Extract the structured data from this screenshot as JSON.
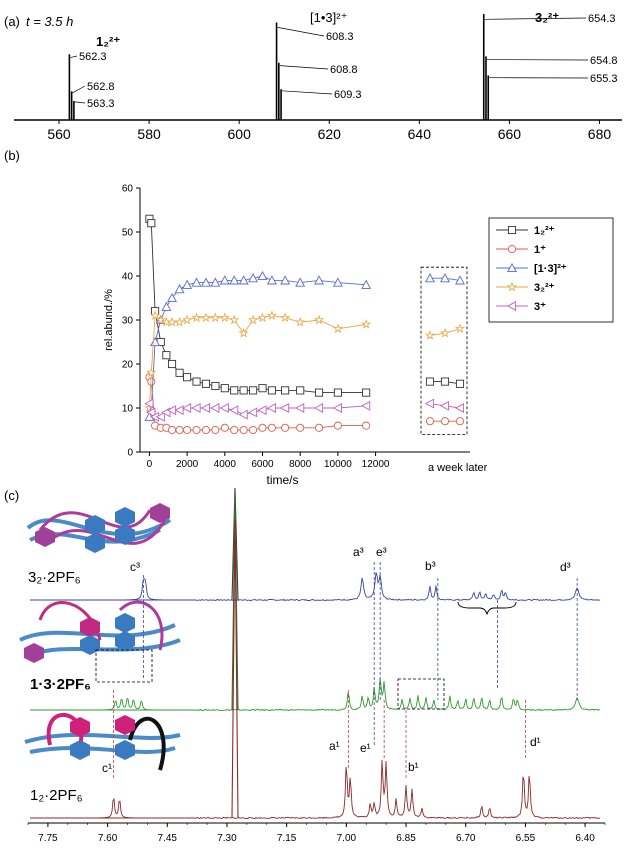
{
  "panel_a": {
    "label": "(a)",
    "time_label": "t = 3.5 h",
    "species": [
      {
        "name": "1₂²⁺",
        "peaks": [
          "562.3",
          "562.8",
          "563.3"
        ]
      },
      {
        "name": "[1•3]²⁺",
        "peaks": [
          "608.3",
          "608.8",
          "609.3"
        ]
      },
      {
        "name": "3₂²⁺",
        "peaks": [
          "654.3",
          "654.8",
          "655.3"
        ]
      }
    ],
    "x_ticks": [
      "560",
      "580",
      "600",
      "620",
      "640",
      "660",
      "680"
    ]
  },
  "panel_b": {
    "label": "(b)",
    "side_label": "a week later"
  },
  "panel_c": {
    "label": "(c)",
    "spectra": [
      {
        "name": "3₂·2PF₆",
        "color": "#3a46a0",
        "labels": [
          "c³",
          "a³",
          "e³",
          "b³",
          "d³"
        ]
      },
      {
        "name": "1·3·2PF₆",
        "color": "#2f9a2f",
        "labels": []
      },
      {
        "name": "1₂·2PF₆",
        "color": "#8b2a2a",
        "labels": [
          "c¹",
          "a¹",
          "e¹",
          "b¹",
          "d¹"
        ]
      }
    ],
    "x_ticks": [
      "7.75",
      "7.60",
      "7.45",
      "7.30",
      "7.15",
      "7.00",
      "6.85",
      "6.70",
      "6.55",
      "6.40"
    ]
  },
  "chart_data": [
    {
      "type": "bar",
      "title": "",
      "xlabel": "",
      "ylabel": "",
      "xlim": [
        550,
        685
      ],
      "x": [
        562.3,
        562.8,
        563.3,
        608.3,
        608.8,
        609.3,
        654.3,
        654.8,
        655.3
      ],
      "values": [
        62,
        27,
        18,
        92,
        54,
        29,
        100,
        60,
        42
      ]
    },
    {
      "type": "line",
      "title": "",
      "xlabel": "time/s",
      "ylabel": "rel.abund./%",
      "xlim": [
        -500,
        12500
      ],
      "ylim": [
        0,
        60
      ],
      "x_ticks": [
        0,
        2000,
        4000,
        6000,
        8000,
        10000,
        12000
      ],
      "y_ticks": [
        0,
        10,
        20,
        30,
        40,
        50,
        60
      ],
      "grid": false,
      "legend": "right",
      "x": [
        0,
        100,
        300,
        600,
        900,
        1200,
        1600,
        2000,
        2500,
        3000,
        3500,
        4000,
        4500,
        5000,
        5500,
        6000,
        6500,
        7200,
        8000,
        9000,
        10000,
        11500
      ],
      "series": [
        {
          "name": "1₂²⁺",
          "color": "#333333",
          "marker": "square",
          "values": [
            53,
            52,
            32,
            25,
            22,
            20,
            18,
            17,
            16,
            15.5,
            15,
            14.5,
            14,
            14,
            14,
            14.5,
            14,
            14,
            14,
            13.5,
            13.5,
            13.5
          ],
          "week_later": [
            16,
            16,
            15.5
          ]
        },
        {
          "name": "1⁺",
          "color": "#e05a4a",
          "marker": "circle",
          "values": [
            17,
            16,
            6,
            5.5,
            5.5,
            5,
            5,
            5,
            5,
            5,
            5,
            5.5,
            5,
            5,
            5,
            5.5,
            5.5,
            5.5,
            5.5,
            5.5,
            6,
            6
          ],
          "week_later": [
            7,
            7,
            7
          ]
        },
        {
          "name": "[1·3]²⁺",
          "color": "#5a6ad0",
          "marker": "triangle-up",
          "values": [
            8,
            10,
            25,
            30,
            33,
            35,
            37,
            38,
            38.5,
            38.5,
            38.5,
            39,
            39,
            39,
            39.5,
            40,
            39,
            39,
            38.5,
            39,
            38.5,
            38
          ],
          "week_later": [
            39.5,
            39.5,
            39
          ]
        },
        {
          "name": "3₂²⁺",
          "color": "#e8a640",
          "marker": "star",
          "values": [
            10,
            18,
            31,
            30,
            29.5,
            29.5,
            29.5,
            30,
            30.5,
            30.5,
            30.5,
            30.5,
            30,
            27,
            30,
            30.5,
            31,
            30.5,
            29.5,
            30,
            28,
            29
          ],
          "week_later": [
            26.5,
            27,
            28
          ]
        },
        {
          "name": "3⁺",
          "color": "#c060c0",
          "marker": "triangle-left",
          "values": [
            11,
            9,
            8,
            8,
            9,
            9.5,
            9.5,
            10,
            10,
            10,
            10,
            10,
            9.5,
            8.5,
            9,
            9.5,
            10,
            10,
            10,
            10,
            10,
            10.5
          ],
          "week_later": [
            11,
            10.5,
            10
          ]
        }
      ]
    },
    {
      "type": "line",
      "title": "",
      "xlabel": "",
      "ylabel": "",
      "xlim": [
        7.8,
        6.35
      ],
      "x_ticks": [
        7.75,
        7.6,
        7.45,
        7.3,
        7.15,
        7.0,
        6.85,
        6.7,
        6.55,
        6.4
      ]
    }
  ]
}
